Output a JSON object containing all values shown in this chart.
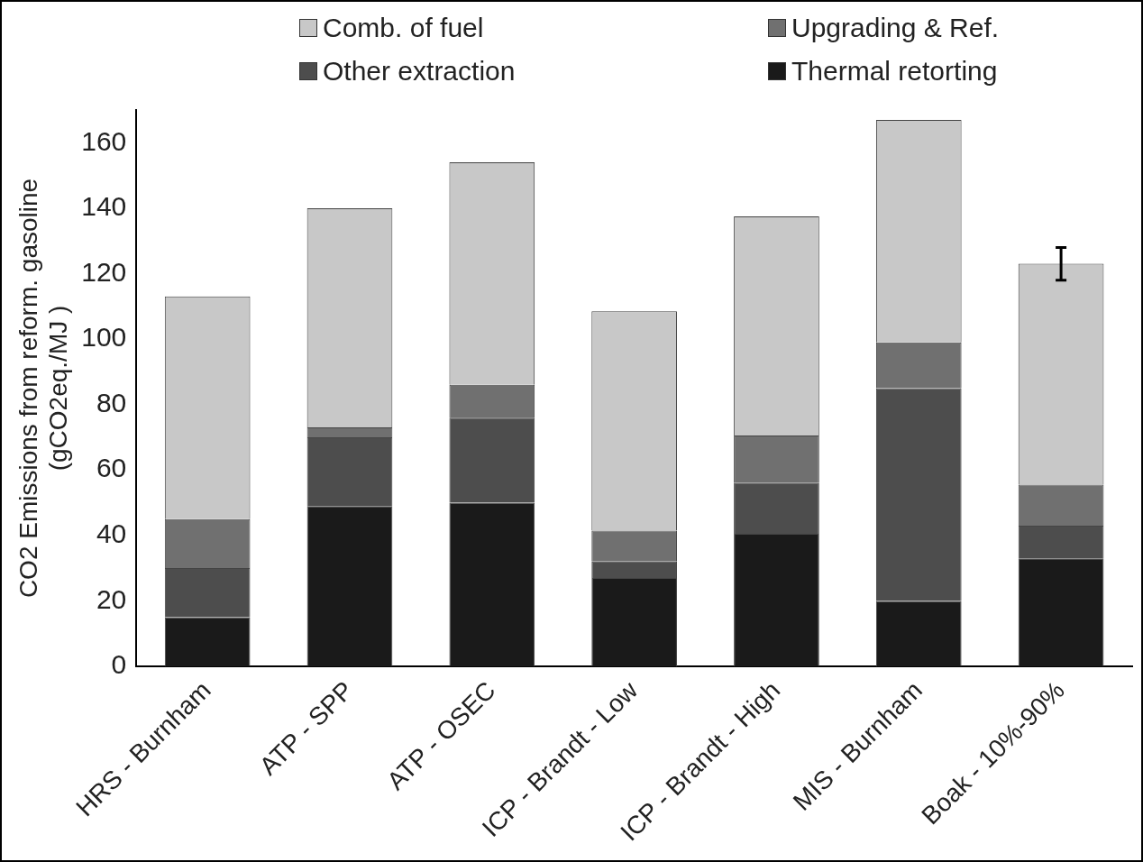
{
  "chart_data": {
    "type": "bar",
    "stacked": true,
    "ylabel": "CO2 Emissions from reform. gasoline\n(gCO2eq./MJ )",
    "categories": [
      "HRS - Burnham",
      "ATP - SPP",
      "ATP - OSEC",
      "ICP - Brandt - Low",
      "ICP - Brandt - High",
      "MIS - Burnham",
      "Boak - 10%-90%"
    ],
    "series": [
      {
        "name": "Thermal retorting",
        "color": "#1a1a1a",
        "values": [
          15,
          49,
          50,
          27,
          40.5,
          20,
          33
        ]
      },
      {
        "name": "Other extraction",
        "color": "#4d4d4d",
        "values": [
          15,
          21,
          26,
          5,
          15.5,
          65,
          10
        ]
      },
      {
        "name": "Upgrading & Ref.",
        "color": "#707070",
        "values": [
          15,
          3,
          10,
          9.5,
          14.5,
          14,
          12.5
        ]
      },
      {
        "name": "Comb. of fuel",
        "color": "#c8c8c8",
        "values": [
          68,
          67,
          68,
          67,
          67,
          68,
          67.5
        ],
        "errors": [
          null,
          null,
          null,
          null,
          null,
          null,
          [
            118,
            128
          ]
        ]
      }
    ],
    "ylim": [
      0,
      170
    ],
    "yticks": [
      0,
      20,
      40,
      60,
      80,
      100,
      120,
      140,
      160
    ],
    "grid": false,
    "legend": "top"
  }
}
